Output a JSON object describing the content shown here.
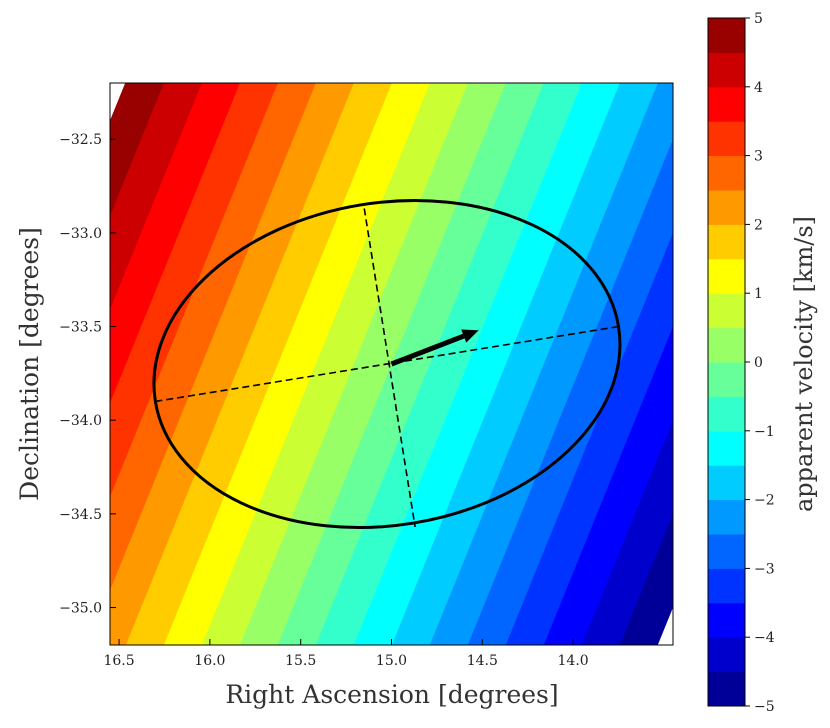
{
  "chart_data": {
    "type": "contour",
    "title": "",
    "xlabel": "Right Ascension [degrees]",
    "ylabel": "Declination [degrees]",
    "xlim": [
      16.55,
      13.45
    ],
    "ylim": [
      -35.2,
      -32.2
    ],
    "x_ticks": [
      16.5,
      16.0,
      15.5,
      15.0,
      14.5,
      14.0
    ],
    "x_tick_labels": [
      "16.5",
      "16.0",
      "15.5",
      "15.0",
      "14.5",
      "14.0"
    ],
    "y_ticks": [
      -32.5,
      -33.0,
      -33.5,
      -34.0,
      -34.5,
      -35.0
    ],
    "y_tick_labels": [
      "−32.5",
      "−33.0",
      "−33.5",
      "−34.0",
      "−34.5",
      "−35.0"
    ],
    "field": {
      "description_units": "km/s",
      "center": [
        15.0,
        -33.7
      ],
      "value_at_center": 0.0,
      "gradient_per_degree": {
        "ra": 2.39,
        "dec": 1.0
      },
      "colormap": "jet",
      "level_min": -5,
      "level_max": 5,
      "level_step": 0.5
    },
    "colorbar": {
      "label": "apparent velocity [km/s]",
      "vmin": -5,
      "vmax": 5,
      "ticks": [
        5,
        4,
        3,
        2,
        1,
        0,
        -1,
        -2,
        -3,
        -4,
        -5
      ],
      "tick_labels": [
        "5",
        "4",
        "3",
        "2",
        "1",
        "0",
        "−1",
        "−2",
        "−3",
        "−4",
        "−5"
      ]
    },
    "ellipse": {
      "center": [
        15.0,
        -33.7
      ],
      "major_endpoints": [
        [
          16.3,
          -33.9
        ],
        [
          13.75,
          -33.5
        ]
      ],
      "minor_endpoints": [
        [
          15.15,
          -32.87
        ],
        [
          14.87,
          -34.57
        ]
      ]
    },
    "arrow": {
      "start": [
        15.0,
        -33.7
      ],
      "end": [
        14.52,
        -33.52
      ]
    }
  }
}
